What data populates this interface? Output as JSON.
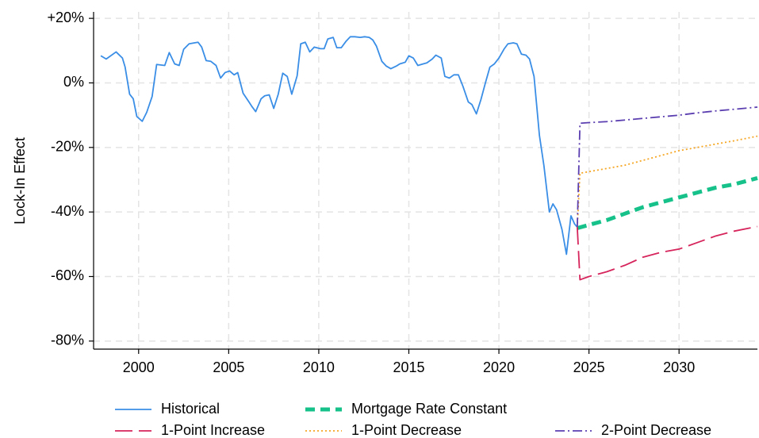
{
  "chart_data": {
    "type": "line",
    "y_label": "Lock-In Effect",
    "xlim": [
      1997.5,
      2034.35
    ],
    "ylim": [
      -82.5,
      22
    ],
    "xticks": [
      2000,
      2005,
      2010,
      2015,
      2020,
      2025,
      2030
    ],
    "yticks": [
      {
        "value": -80,
        "label": "-80%"
      },
      {
        "value": -60,
        "label": "-60%"
      },
      {
        "value": -40,
        "label": "-40%"
      },
      {
        "value": -20,
        "label": "-20%"
      },
      {
        "value": 0,
        "label": "0%"
      },
      {
        "value": 20,
        "label": "+20%"
      }
    ],
    "grid": true,
    "series": [
      {
        "name": "Historical",
        "color": "#3a8ee6",
        "line_style": "solid",
        "x": [
          1997.9,
          1998.2,
          1998.75,
          1999.1,
          1999.25,
          1999.5,
          1999.7,
          1999.9,
          2000.2,
          2000.45,
          2000.75,
          2001.0,
          2001.45,
          2001.7,
          2002.0,
          2002.25,
          2002.5,
          2002.8,
          2003.1,
          2003.3,
          2003.5,
          2003.75,
          2004.0,
          2004.3,
          2004.55,
          2004.8,
          2005.05,
          2005.3,
          2005.5,
          2005.8,
          2006.1,
          2006.3,
          2006.5,
          2006.8,
          2007.0,
          2007.25,
          2007.5,
          2007.75,
          2008.0,
          2008.25,
          2008.5,
          2008.8,
          2009.0,
          2009.25,
          2009.5,
          2009.75,
          2010.1,
          2010.3,
          2010.5,
          2010.8,
          2011.0,
          2011.25,
          2011.5,
          2011.75,
          2012.0,
          2012.3,
          2012.55,
          2012.8,
          2013.0,
          2013.2,
          2013.5,
          2013.75,
          2014.0,
          2014.3,
          2014.5,
          2014.8,
          2015.0,
          2015.25,
          2015.5,
          2015.8,
          2016.0,
          2016.3,
          2016.5,
          2016.8,
          2017.0,
          2017.25,
          2017.5,
          2017.75,
          2018.0,
          2018.3,
          2018.5,
          2018.75,
          2019.0,
          2019.25,
          2019.5,
          2019.75,
          2020.0,
          2020.3,
          2020.5,
          2020.8,
          2021.0,
          2021.25,
          2021.5,
          2021.7,
          2021.95,
          2022.25,
          2022.5,
          2022.8,
          2023.0,
          2023.2,
          2023.5,
          2023.75,
          2024.0,
          2024.2,
          2024.35
        ],
        "values": [
          8.4,
          7.4,
          9.6,
          7.7,
          4.9,
          -3.5,
          -4.9,
          -10.4,
          -11.9,
          -9.1,
          -4.2,
          5.7,
          5.4,
          9.4,
          5.9,
          5.4,
          10.4,
          12.1,
          12.4,
          12.6,
          11.1,
          6.9,
          6.7,
          5.4,
          1.5,
          3.2,
          3.7,
          2.5,
          3.2,
          -3.2,
          -5.7,
          -7.4,
          -8.9,
          -4.9,
          -4.0,
          -3.7,
          -7.9,
          -3.5,
          3.0,
          2.0,
          -3.5,
          2.2,
          12.1,
          12.6,
          9.6,
          11.1,
          10.6,
          10.6,
          13.6,
          14.1,
          10.9,
          10.9,
          12.8,
          14.3,
          14.3,
          14.1,
          14.3,
          14.1,
          13.3,
          11.4,
          6.7,
          5.2,
          4.4,
          5.2,
          5.9,
          6.4,
          8.4,
          7.7,
          5.4,
          5.9,
          6.2,
          7.4,
          8.6,
          7.7,
          2.0,
          1.5,
          2.5,
          2.5,
          -1.0,
          -5.9,
          -6.7,
          -9.6,
          -5.2,
          0,
          4.9,
          5.9,
          7.7,
          10.6,
          12.1,
          12.4,
          12.1,
          8.9,
          8.6,
          7.4,
          2.0,
          -16.3,
          -25.7,
          -40.0,
          -37.5,
          -39.3,
          -45.4,
          -53.1,
          -41.2,
          -43.7,
          -44.7
        ]
      },
      {
        "name": "Mortgage Rate Constant",
        "color": "#17c28a",
        "line_style": "thickdash",
        "x": [
          2024.35,
          2025,
          2026,
          2027,
          2028,
          2029,
          2030,
          2031,
          2032,
          2033,
          2034.35
        ],
        "values": [
          -45,
          -44,
          -42.5,
          -40.5,
          -38.5,
          -37,
          -35.5,
          -34,
          -32.5,
          -31.5,
          -29.5
        ]
      },
      {
        "name": "1-Point Increase",
        "color": "#d6245c",
        "line_style": "longdash",
        "x": [
          2024.35,
          2024.5,
          2025,
          2026,
          2027,
          2028,
          2029,
          2030,
          2031,
          2032,
          2033,
          2034.35
        ],
        "values": [
          -44.7,
          -61,
          -60,
          -58.5,
          -56.5,
          -54,
          -52.5,
          -51.5,
          -49.5,
          -47.5,
          -46,
          -44.5
        ]
      },
      {
        "name": "1-Point Decrease",
        "color": "#f5a623",
        "line_style": "dot",
        "x": [
          2024.35,
          2024.5,
          2025,
          2026,
          2027,
          2028,
          2029,
          2030,
          2031,
          2032,
          2033,
          2034.35
        ],
        "values": [
          -44.7,
          -28,
          -27.5,
          -26.5,
          -25.5,
          -24,
          -22.5,
          -21,
          -20,
          -19,
          -18,
          -16.5
        ]
      },
      {
        "name": "2-Point Decrease",
        "color": "#5b3fb0",
        "line_style": "dashdot",
        "x": [
          2024.35,
          2024.5,
          2025,
          2026,
          2027,
          2028,
          2029,
          2030,
          2031,
          2032,
          2033,
          2034.35
        ],
        "values": [
          -44.7,
          -12.5,
          -12.3,
          -12,
          -11.5,
          -11,
          -10.5,
          -10,
          -9.3,
          -8.7,
          -8.2,
          -7.5
        ]
      }
    ]
  }
}
